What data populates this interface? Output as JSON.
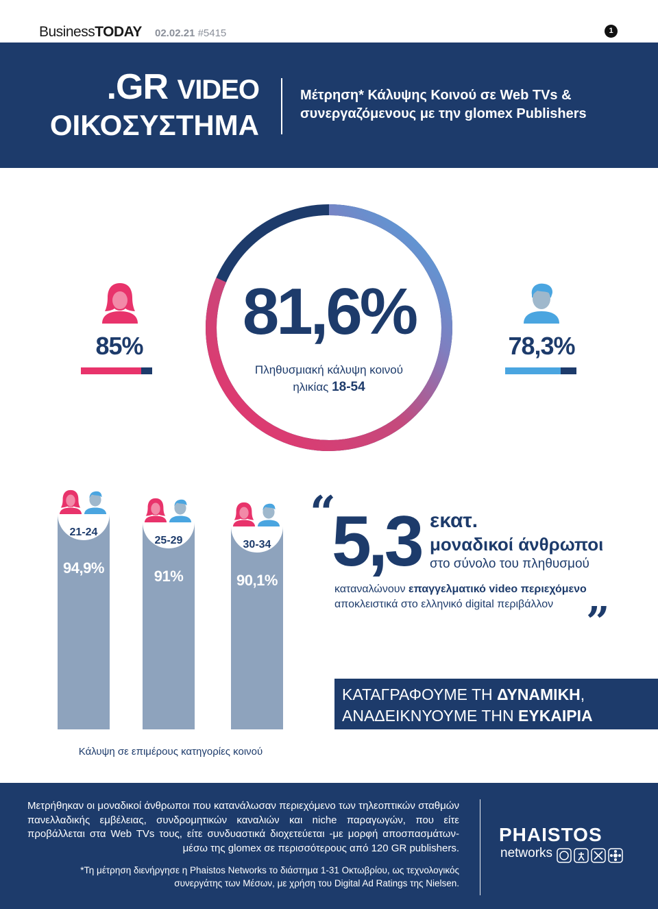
{
  "topbar": {
    "brand_a": "Business",
    "brand_b": "TODAY",
    "date": "02.02.21",
    "issue": "#5415",
    "page": "1"
  },
  "header": {
    "title_gr": ".GR",
    "title_video": "VIDEO",
    "title_eco": "ΟΙΚΟΣΥΣΤΗΜΑ",
    "subtitle_line1": "Μέτρηση* Κάλυψης Κοινού σε Web TVs &",
    "subtitle_line2": "συνεργαζόμενους με την glomex Publishers"
  },
  "coverage": {
    "total_pct_label": "81,6%",
    "total_value": 81.6,
    "caption_line1": "Πληθυσμιακή κάλυψη κοινού",
    "caption_line2": "ηλικίας",
    "caption_age": "18-54",
    "female_pct_label": "85%",
    "female_value": 85,
    "male_pct_label": "78,3%",
    "male_value": 78.3,
    "colors": {
      "pink": "#e8336b",
      "blue": "#4aa5e0",
      "navy": "#1d3b6b",
      "bar_grey": "#8ea3bd"
    }
  },
  "age_groups": [
    {
      "age": "21-24",
      "label": "94,9%",
      "value": 94.9
    },
    {
      "age": "25-29",
      "label": "91%",
      "value": 91
    },
    {
      "age": "30-34",
      "label": "90,1%",
      "value": 90.1
    }
  ],
  "age_caption": "Κάλυψη σε επιμέρους κατηγορίες κοινού",
  "quote": {
    "open": "“",
    "close": "”",
    "number": "5,3",
    "unit": "εκατ.",
    "people": "μοναδικοί άνθρωποι",
    "total": "στο σύνολο του πληθυσμού",
    "consume_a": "καταναλώνουν",
    "consume_b": "επαγγελματικό video περιεχόμενο",
    "consume_c": "αποκλειστικά στο ελληνικό digital περιβάλλον"
  },
  "cta": {
    "line1_a": "ΚΑΤΑΓΡΑΦΟΥΜΕ ΤΗ",
    "line1_b": "ΔΥΝΑΜΙΚΗ",
    "line1_c": ",",
    "line2_a": "ΑΝΑΔΕΙΚΝΥΟΥΜΕ ΤΗΝ",
    "line2_b": "ΕΥΚΑΙΡΙΑ"
  },
  "footer": {
    "text": "Μετρήθηκαν οι μοναδικοί άνθρωποι που κατανάλωσαν περιεχόμενο των τηλεοπτικών σταθμών πανελλαδικής εμβέλειας, συνδρομητικών καναλιών και niche παραγωγών, που είτε προβάλλεται στα Web TVs τους, είτε συνδυαστικά διοχετεύεται -με μορφή αποσπασμάτων- μέσω της glomex σε περισσότερους από 120 GR publishers.",
    "note_line1": "*Τη μέτρηση διενήργησε η Phaistos Networks το διάστημα 1-31 Οκτωβρίου, ως τεχνολογικός",
    "note_line2": "συνεργάτης των Μέσων, με χρήση του Digital Ad Ratings της Nielsen.",
    "logo_main": "PHAISTOS",
    "logo_sub": "networks"
  }
}
